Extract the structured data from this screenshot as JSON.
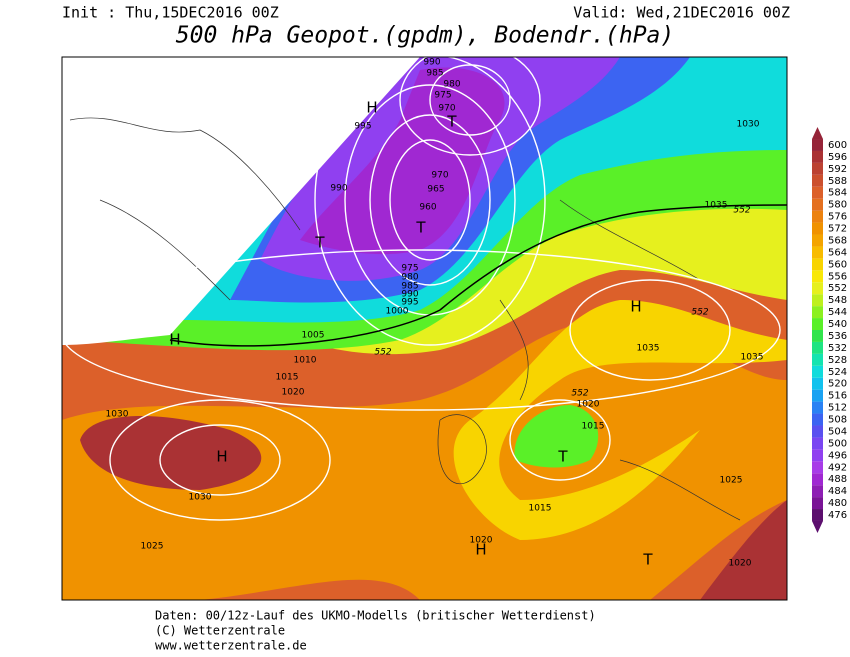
{
  "header": {
    "init": "Init : Thu,15DEC2016 00Z",
    "valid": "Valid: Wed,21DEC2016 00Z",
    "title": "500 hPa Geopot.(gpdm), Bodendr.(hPa)"
  },
  "colorbar": {
    "levels": [
      476,
      480,
      484,
      488,
      492,
      496,
      500,
      504,
      508,
      512,
      516,
      520,
      524,
      528,
      532,
      536,
      540,
      544,
      548,
      552,
      556,
      560,
      564,
      568,
      572,
      576,
      580,
      584,
      588,
      592,
      596,
      600
    ],
    "colors": [
      "#5c0f6e",
      "#7a1496",
      "#8e1eb4",
      "#a028d2",
      "#a83ce8",
      "#9040f0",
      "#7a46f2",
      "#5a50f0",
      "#3c64f2",
      "#2a82f4",
      "#1aa2f2",
      "#12c2ee",
      "#10dcdc",
      "#14e4b0",
      "#1ee482",
      "#30e44c",
      "#5af028",
      "#8cf020",
      "#bef01e",
      "#e6f01e",
      "#f8e808",
      "#f8d400",
      "#f8bc00",
      "#f4a400",
      "#f09200",
      "#ec8210",
      "#e47020",
      "#dc602a",
      "#cc502e",
      "#bc4232",
      "#aa3234",
      "#962438"
    ]
  },
  "map": {
    "isobar_labels": [
      "990",
      "985",
      "980",
      "975",
      "970",
      "995",
      "990",
      "970",
      "965",
      "960",
      "975",
      "980",
      "985",
      "990",
      "995",
      "1000",
      "1005",
      "1010",
      "1015",
      "1020",
      "1030",
      "1035",
      "1030",
      "1030",
      "1025",
      "1020",
      "1015",
      "1015",
      "1020",
      "1025",
      "1020",
      "1035",
      "1035"
    ],
    "geopot_labels": [
      "552",
      "552",
      "552",
      "552"
    ],
    "pressure_centers": [
      "H",
      "T",
      "T",
      "T",
      "H",
      "H",
      "H",
      "T",
      "H",
      "T"
    ]
  },
  "footer": {
    "line1": "Daten: 00/12z-Lauf des UKMO-Modells (britischer Wetterdienst)",
    "line2": "(C) Wetterzentrale",
    "line3": "www.wetterzentrale.de"
  }
}
